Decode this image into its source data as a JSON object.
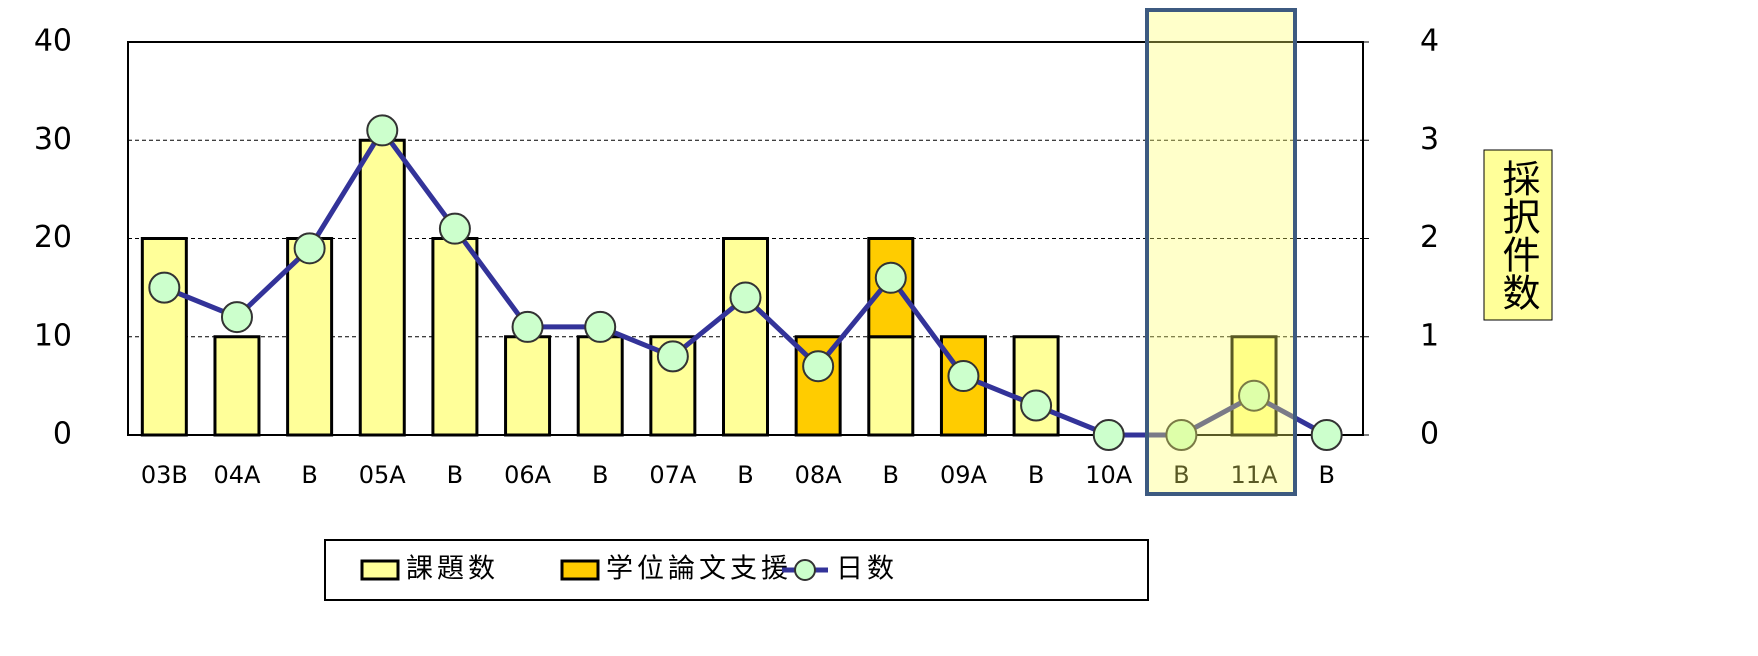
{
  "chart_data": {
    "type": "bar",
    "y2_label": "採択件数",
    "categories": [
      "03B",
      "04A",
      "B",
      "05A",
      "B",
      "06A",
      "B",
      "07A",
      "B",
      "08A",
      "B",
      "09A",
      "B",
      "10A",
      "B",
      "11A",
      "B"
    ],
    "series": [
      {
        "name": "課題数",
        "type": "bar",
        "color": "#ffff99",
        "values": [
          20,
          10,
          20,
          30,
          20,
          10,
          10,
          10,
          20,
          0,
          10,
          0,
          10,
          0,
          0,
          10,
          0
        ]
      },
      {
        "name": "学位論文支援",
        "type": "bar",
        "color": "#ffcc00",
        "values": [
          0,
          0,
          0,
          0,
          0,
          0,
          0,
          0,
          0,
          10,
          10,
          10,
          0,
          0,
          0,
          0,
          0
        ]
      },
      {
        "name": "日数",
        "type": "line",
        "axis": "y2",
        "color": "#333399",
        "marker_color": "#ccffcc",
        "values": [
          1.5,
          1.2,
          1.9,
          3.1,
          2.1,
          1.1,
          1.1,
          0.8,
          1.4,
          0.7,
          1.6,
          0.6,
          0.3,
          0,
          0,
          0.4,
          0
        ]
      }
    ],
    "stacked": true,
    "ylim": [
      0,
      40
    ],
    "yticks": [
      0,
      10,
      20,
      30,
      40
    ],
    "y2lim": [
      0,
      4
    ],
    "y2ticks": [
      0,
      1,
      2,
      3,
      4
    ],
    "grid": true,
    "legend": "bottom"
  }
}
